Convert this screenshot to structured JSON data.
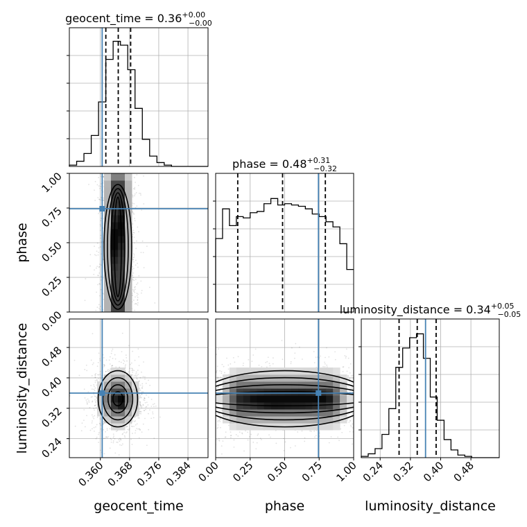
{
  "chart_data": {
    "type": "corner",
    "parameters": [
      "geocent_time",
      "phase",
      "luminosity_distance"
    ],
    "titles": {
      "geocent_time": {
        "name": "geocent_time",
        "median": "0.36",
        "plus": "+0.00",
        "minus": "−0.00"
      },
      "phase": {
        "name": "phase",
        "median": "0.48",
        "plus": "+0.31",
        "minus": "−0.32"
      },
      "luminosity_distance": {
        "name": "luminosity_distance",
        "median": "0.34",
        "plus": "+0.05",
        "minus": "−0.05"
      }
    },
    "ranges": {
      "geocent_time": [
        0.3515,
        0.3895
      ],
      "phase": [
        0.0,
        1.0
      ],
      "luminosity_distance": [
        0.19,
        0.555
      ]
    },
    "ticks": {
      "geocent_time": {
        "values": [
          0.36,
          0.368,
          0.376,
          0.384
        ],
        "labels": [
          "0.360",
          "0.368",
          "0.376",
          "0.384"
        ]
      },
      "phase": {
        "values": [
          0.0,
          0.25,
          0.5,
          0.75,
          1.0
        ],
        "labels": [
          "0.00",
          "0.25",
          "0.50",
          "0.75",
          "1.00"
        ]
      },
      "luminosity_distance": {
        "values": [
          0.24,
          0.32,
          0.4,
          0.48
        ],
        "labels": [
          "0.24",
          "0.32",
          "0.40",
          "0.48"
        ]
      }
    },
    "injection": {
      "geocent_time": 0.3605,
      "phase": 0.745,
      "luminosity_distance": 0.36
    },
    "quantiles": {
      "geocent_time": [
        0.3615,
        0.3649,
        0.3683
      ],
      "phase": [
        0.16,
        0.485,
        0.795
      ],
      "luminosity_distance": [
        0.29,
        0.338,
        0.388
      ]
    },
    "histograms": {
      "geocent_time": {
        "bin_edges": [
          0.3515,
          0.3535,
          0.3555,
          0.3575,
          0.3595,
          0.3615,
          0.3635,
          0.3655,
          0.3675,
          0.3695,
          0.3715,
          0.3735,
          0.3755,
          0.3775,
          0.3795,
          0.3815,
          0.3835,
          0.3855,
          0.3875,
          0.3895
        ],
        "counts": [
          0.01,
          0.04,
          0.1,
          0.24,
          0.5,
          0.83,
          0.97,
          0.94,
          0.75,
          0.45,
          0.21,
          0.08,
          0.03,
          0.01,
          0.0,
          0.0,
          0.0,
          0.0,
          0.0
        ]
      },
      "phase": {
        "bin_edges": [
          0.0,
          0.05,
          0.1,
          0.15,
          0.2,
          0.25,
          0.3,
          0.35,
          0.4,
          0.45,
          0.5,
          0.55,
          0.6,
          0.65,
          0.7,
          0.75,
          0.8,
          0.85,
          0.9,
          0.95,
          1.0
        ],
        "counts": [
          0.57,
          0.8,
          0.67,
          0.74,
          0.73,
          0.77,
          0.78,
          0.84,
          0.88,
          0.83,
          0.84,
          0.83,
          0.82,
          0.8,
          0.76,
          0.74,
          0.7,
          0.66,
          0.53,
          0.33
        ]
      },
      "luminosity_distance": {
        "bin_edges": [
          0.19,
          0.2083,
          0.2265,
          0.2448,
          0.263,
          0.2813,
          0.2995,
          0.3178,
          0.336,
          0.3543,
          0.3725,
          0.3908,
          0.409,
          0.4273,
          0.4455,
          0.4638,
          0.482,
          0.5003,
          0.5185,
          0.5368,
          0.555
        ],
        "counts": [
          0.01,
          0.03,
          0.07,
          0.18,
          0.38,
          0.7,
          0.85,
          0.93,
          0.96,
          0.77,
          0.47,
          0.29,
          0.14,
          0.06,
          0.02,
          0.01,
          0.0,
          0.0,
          0.0,
          0.0
        ]
      }
    },
    "pairs": [
      {
        "x": "geocent_time",
        "y": "phase",
        "center": [
          0.3648,
          0.47
        ],
        "spread": [
          0.0019,
          0.3
        ],
        "peaks": [
          [
            0.3643,
            0.51
          ],
          [
            0.3652,
            0.62
          ]
        ]
      },
      {
        "x": "geocent_time",
        "y": "luminosity_distance",
        "center": [
          0.3648,
          0.345
        ],
        "spread": [
          0.0027,
          0.037
        ],
        "peaks": [
          [
            0.3652,
            0.336
          ]
        ]
      },
      {
        "x": "phase",
        "y": "luminosity_distance",
        "center": [
          0.5,
          0.345
        ],
        "spread": [
          0.3,
          0.037
        ],
        "peaks": [
          [
            0.42,
            0.342
          ],
          [
            0.65,
            0.345
          ]
        ]
      }
    ],
    "xlabels": [
      "geocent_time",
      "phase",
      "luminosity_distance"
    ],
    "ylabels": [
      "phase",
      "luminosity_distance"
    ],
    "colors": {
      "truth": "#4682b4",
      "hist": "#000000",
      "grid": "#b0b0b0",
      "points": "#000000"
    },
    "grid": true
  }
}
